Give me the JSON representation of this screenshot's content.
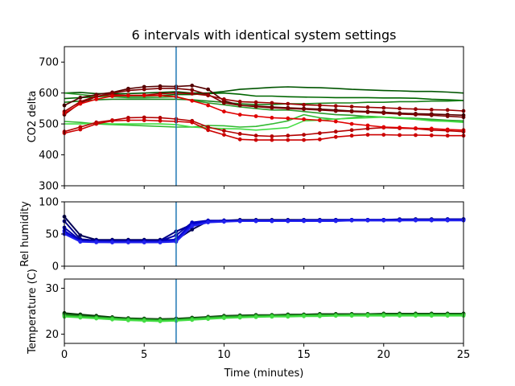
{
  "figure_title": "6 intervals with identical system settings",
  "xlabel": "Time (minutes)",
  "colors": {
    "event_line": "#1f77b4",
    "co2_reds": [
      "#550000",
      "#7a0000",
      "#990000",
      "#b30000",
      "#cc0000",
      "#e00000"
    ],
    "co2_greens": [
      "#005500",
      "#006600",
      "#1a801a",
      "#2a9a2a",
      "#33bb33",
      "#44dd44"
    ],
    "humidity": [
      "#000055",
      "#000088",
      "#0000aa",
      "#0000cc",
      "#1111dd",
      "#2222ee"
    ],
    "temperature": [
      "#003300",
      "#115511",
      "#228822",
      "#22aa22",
      "#33cc33",
      "#44dd44"
    ]
  },
  "chart_data": [
    {
      "type": "line",
      "panel": "co2",
      "ylabel": "CO2 delta",
      "xlim": [
        0,
        25
      ],
      "ylim": [
        300,
        750
      ],
      "yticks": [
        300,
        400,
        500,
        600,
        700
      ],
      "xticks": [
        0,
        5,
        10,
        15,
        20,
        25
      ],
      "event_x": 7,
      "x": [
        0,
        1,
        2,
        3,
        4,
        5,
        6,
        7,
        8,
        9,
        10,
        11,
        12,
        13,
        14,
        15,
        16,
        17,
        18,
        19,
        20,
        21,
        22,
        23,
        24,
        25
      ],
      "series_with_markers": [
        {
          "values": [
            560,
            585,
            595,
            602,
            614,
            620,
            622,
            621,
            624,
            612,
            575,
            560,
            558,
            555,
            552,
            550,
            548,
            545,
            542,
            540,
            538,
            535,
            533,
            532,
            530,
            528
          ]
        },
        {
          "values": [
            530,
            568,
            588,
            600,
            608,
            612,
            615,
            615,
            610,
            595,
            568,
            560,
            556,
            552,
            550,
            548,
            545,
            542,
            540,
            538,
            535,
            532,
            530,
            528,
            525,
            522
          ]
        },
        {
          "values": [
            540,
            572,
            590,
            595,
            592,
            593,
            598,
            600,
            598,
            592,
            580,
            572,
            570,
            568,
            565,
            562,
            560,
            558,
            556,
            554,
            552,
            550,
            548,
            546,
            545,
            542
          ]
        },
        {
          "values": [
            475,
            490,
            505,
            512,
            520,
            521,
            520,
            516,
            510,
            490,
            478,
            468,
            462,
            460,
            462,
            465,
            470,
            475,
            480,
            485,
            488,
            486,
            485,
            480,
            478,
            475
          ]
        },
        {
          "values": [
            470,
            482,
            500,
            510,
            512,
            512,
            510,
            508,
            505,
            480,
            465,
            450,
            448,
            448,
            448,
            448,
            450,
            458,
            462,
            465,
            465,
            464,
            464,
            463,
            462,
            462
          ]
        },
        {
          "values": [
            535,
            565,
            580,
            590,
            592,
            592,
            592,
            588,
            575,
            560,
            540,
            530,
            525,
            520,
            518,
            515,
            512,
            508,
            500,
            495,
            490,
            488,
            486,
            485,
            482,
            480
          ]
        }
      ],
      "series_lines": [
        {
          "values": [
            600,
            602,
            598,
            598,
            598,
            600,
            602,
            604,
            600,
            600,
            605,
            612,
            615,
            618,
            620,
            618,
            617,
            615,
            612,
            610,
            608,
            607,
            605,
            605,
            603,
            600
          ]
        },
        {
          "values": [
            582,
            585,
            588,
            590,
            590,
            590,
            592,
            595,
            595,
            598,
            600,
            596,
            590,
            590,
            588,
            587,
            586,
            585,
            585,
            585,
            584,
            584,
            583,
            580,
            578,
            576
          ]
        },
        {
          "values": [
            570,
            574,
            578,
            580,
            580,
            580,
            580,
            580,
            578,
            574,
            570,
            565,
            563,
            563,
            565,
            565,
            567,
            568,
            568,
            570,
            570,
            572,
            572,
            574,
            574,
            576
          ]
        },
        {
          "values": [
            600,
            595,
            590,
            588,
            585,
            585,
            586,
            588,
            576,
            568,
            562,
            555,
            550,
            545,
            545,
            540,
            535,
            530,
            528,
            524,
            522,
            520,
            518,
            515,
            512,
            510
          ]
        },
        {
          "values": [
            508,
            505,
            500,
            498,
            496,
            494,
            492,
            490,
            490,
            495,
            494,
            490,
            492,
            500,
            510,
            530,
            520,
            515,
            520,
            525,
            522,
            518,
            515,
            512,
            510,
            508
          ]
        },
        {
          "values": [
            500,
            500,
            502,
            500,
            500,
            500,
            500,
            498,
            490,
            487,
            485,
            484,
            480,
            484,
            488,
            510,
            512,
            516,
            518,
            520,
            522,
            520,
            515,
            510,
            508,
            505
          ]
        }
      ]
    },
    {
      "type": "line",
      "panel": "humidity",
      "ylabel": "Rel humidity",
      "xlim": [
        0,
        25
      ],
      "ylim": [
        0,
        100
      ],
      "yticks": [
        0,
        50,
        100
      ],
      "event_x": 7,
      "x": [
        0,
        1,
        2,
        3,
        4,
        5,
        6,
        7,
        8,
        9,
        10,
        11,
        12,
        13,
        14,
        15,
        16,
        17,
        18,
        19,
        20,
        21,
        22,
        23,
        24,
        25
      ],
      "series": [
        {
          "values": [
            77,
            48,
            41,
            41,
            41,
            41,
            41,
            41,
            57,
            70,
            71,
            72,
            72,
            72,
            72,
            72,
            72,
            72,
            72,
            72,
            72,
            72,
            73,
            73,
            73,
            73
          ]
        },
        {
          "values": [
            70,
            42,
            40,
            40,
            40,
            40,
            40,
            54,
            65,
            70,
            71,
            71,
            71,
            71,
            71,
            72,
            72,
            72,
            72,
            72,
            72,
            73,
            73,
            73,
            73,
            73
          ]
        },
        {
          "values": [
            60,
            40,
            39,
            39,
            39,
            39,
            39,
            48,
            68,
            71,
            71,
            71,
            71,
            71,
            71,
            71,
            71,
            72,
            72,
            72,
            72,
            72,
            72,
            72,
            73,
            73
          ]
        },
        {
          "values": [
            55,
            39,
            38,
            38,
            38,
            38,
            38,
            42,
            67,
            70,
            70,
            70,
            71,
            71,
            71,
            71,
            71,
            71,
            72,
            72,
            72,
            72,
            72,
            72,
            72,
            72
          ]
        },
        {
          "values": [
            52,
            38,
            38,
            37,
            37,
            37,
            37,
            40,
            64,
            69,
            70,
            70,
            70,
            70,
            70,
            71,
            71,
            71,
            71,
            71,
            71,
            71,
            72,
            72,
            72,
            72
          ]
        },
        {
          "values": [
            50,
            38,
            37,
            37,
            37,
            37,
            37,
            38,
            62,
            68,
            69,
            70,
            70,
            70,
            70,
            70,
            70,
            70,
            71,
            71,
            71,
            71,
            71,
            71,
            71,
            71
          ]
        }
      ]
    },
    {
      "type": "line",
      "panel": "temperature",
      "ylabel": "Temperature (C)",
      "xlim": [
        0,
        25
      ],
      "ylim": [
        18,
        32
      ],
      "yticks": [
        20,
        30
      ],
      "xticks": [
        0,
        5,
        10,
        15,
        20,
        25
      ],
      "event_x": 7,
      "x": [
        0,
        1,
        2,
        3,
        4,
        5,
        6,
        7,
        8,
        9,
        10,
        11,
        12,
        13,
        14,
        15,
        16,
        17,
        18,
        19,
        20,
        21,
        22,
        23,
        24,
        25
      ],
      "series": [
        {
          "values": [
            24.6,
            24.3,
            24.0,
            23.7,
            23.5,
            23.4,
            23.3,
            23.4,
            23.6,
            23.8,
            24.0,
            24.1,
            24.2,
            24.2,
            24.3,
            24.3,
            24.4,
            24.4,
            24.4,
            24.4,
            24.5,
            24.5,
            24.5,
            24.5,
            24.5,
            24.5
          ]
        },
        {
          "values": [
            24.4,
            24.1,
            23.8,
            23.6,
            23.4,
            23.3,
            23.2,
            23.3,
            23.5,
            23.7,
            23.9,
            24.0,
            24.1,
            24.1,
            24.2,
            24.2,
            24.3,
            24.3,
            24.3,
            24.4,
            24.4,
            24.4,
            24.4,
            24.4,
            24.4,
            24.4
          ]
        },
        {
          "values": [
            24.2,
            23.9,
            23.7,
            23.5,
            23.3,
            23.2,
            23.1,
            23.2,
            23.4,
            23.6,
            23.8,
            23.9,
            24.0,
            24.0,
            24.1,
            24.1,
            24.2,
            24.2,
            24.2,
            24.3,
            24.3,
            24.3,
            24.3,
            24.3,
            24.3,
            24.3
          ]
        },
        {
          "values": [
            24.0,
            23.8,
            23.6,
            23.4,
            23.2,
            23.1,
            23.0,
            23.1,
            23.3,
            23.5,
            23.7,
            23.8,
            23.9,
            24.0,
            24.0,
            24.1,
            24.1,
            24.1,
            24.2,
            24.2,
            24.2,
            24.2,
            24.2,
            24.2,
            24.2,
            24.2
          ]
        },
        {
          "values": [
            23.9,
            23.7,
            23.5,
            23.3,
            23.1,
            23.0,
            22.9,
            23.0,
            23.2,
            23.4,
            23.6,
            23.7,
            23.8,
            23.9,
            23.9,
            24.0,
            24.0,
            24.0,
            24.1,
            24.1,
            24.1,
            24.1,
            24.1,
            24.1,
            24.1,
            24.1
          ]
        },
        {
          "values": [
            23.8,
            23.6,
            23.4,
            23.2,
            23.0,
            22.9,
            22.8,
            22.9,
            23.1,
            23.3,
            23.5,
            23.6,
            23.7,
            23.8,
            23.8,
            23.9,
            23.9,
            24.0,
            24.0,
            24.0,
            24.0,
            24.0,
            24.0,
            24.0,
            24.0,
            24.0
          ]
        }
      ]
    }
  ]
}
